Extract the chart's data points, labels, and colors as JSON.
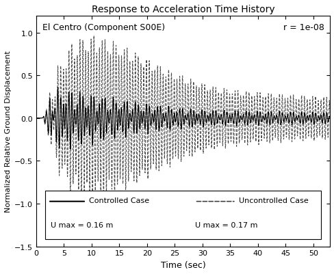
{
  "title": "Response to Acceleration Time History",
  "annotation_left": "El Centro (Component S00E)",
  "annotation_right": "r = 1e-08",
  "xlabel": "Time (sec)",
  "ylabel": "Normalized Relative Ground Displacement",
  "xlim": [
    0,
    53
  ],
  "ylim": [
    -1.5,
    1.2
  ],
  "yticks": [
    -1.5,
    -1.0,
    -0.5,
    0.0,
    0.5,
    1.0
  ],
  "xticks": [
    0,
    5,
    10,
    15,
    20,
    25,
    30,
    35,
    40,
    45,
    50
  ],
  "legend_controlled": "Controlled Case",
  "legend_uncontrolled": "Uncontrolled Case",
  "umax_controlled": "U max = 0.16 m",
  "umax_uncontrolled": "U max = 0.17 m",
  "controlled_color": "#000000",
  "uncontrolled_color": "#444444",
  "background_color": "#ffffff",
  "title_fontsize": 10,
  "label_fontsize": 9,
  "tick_fontsize": 8,
  "annotation_fontsize": 9
}
